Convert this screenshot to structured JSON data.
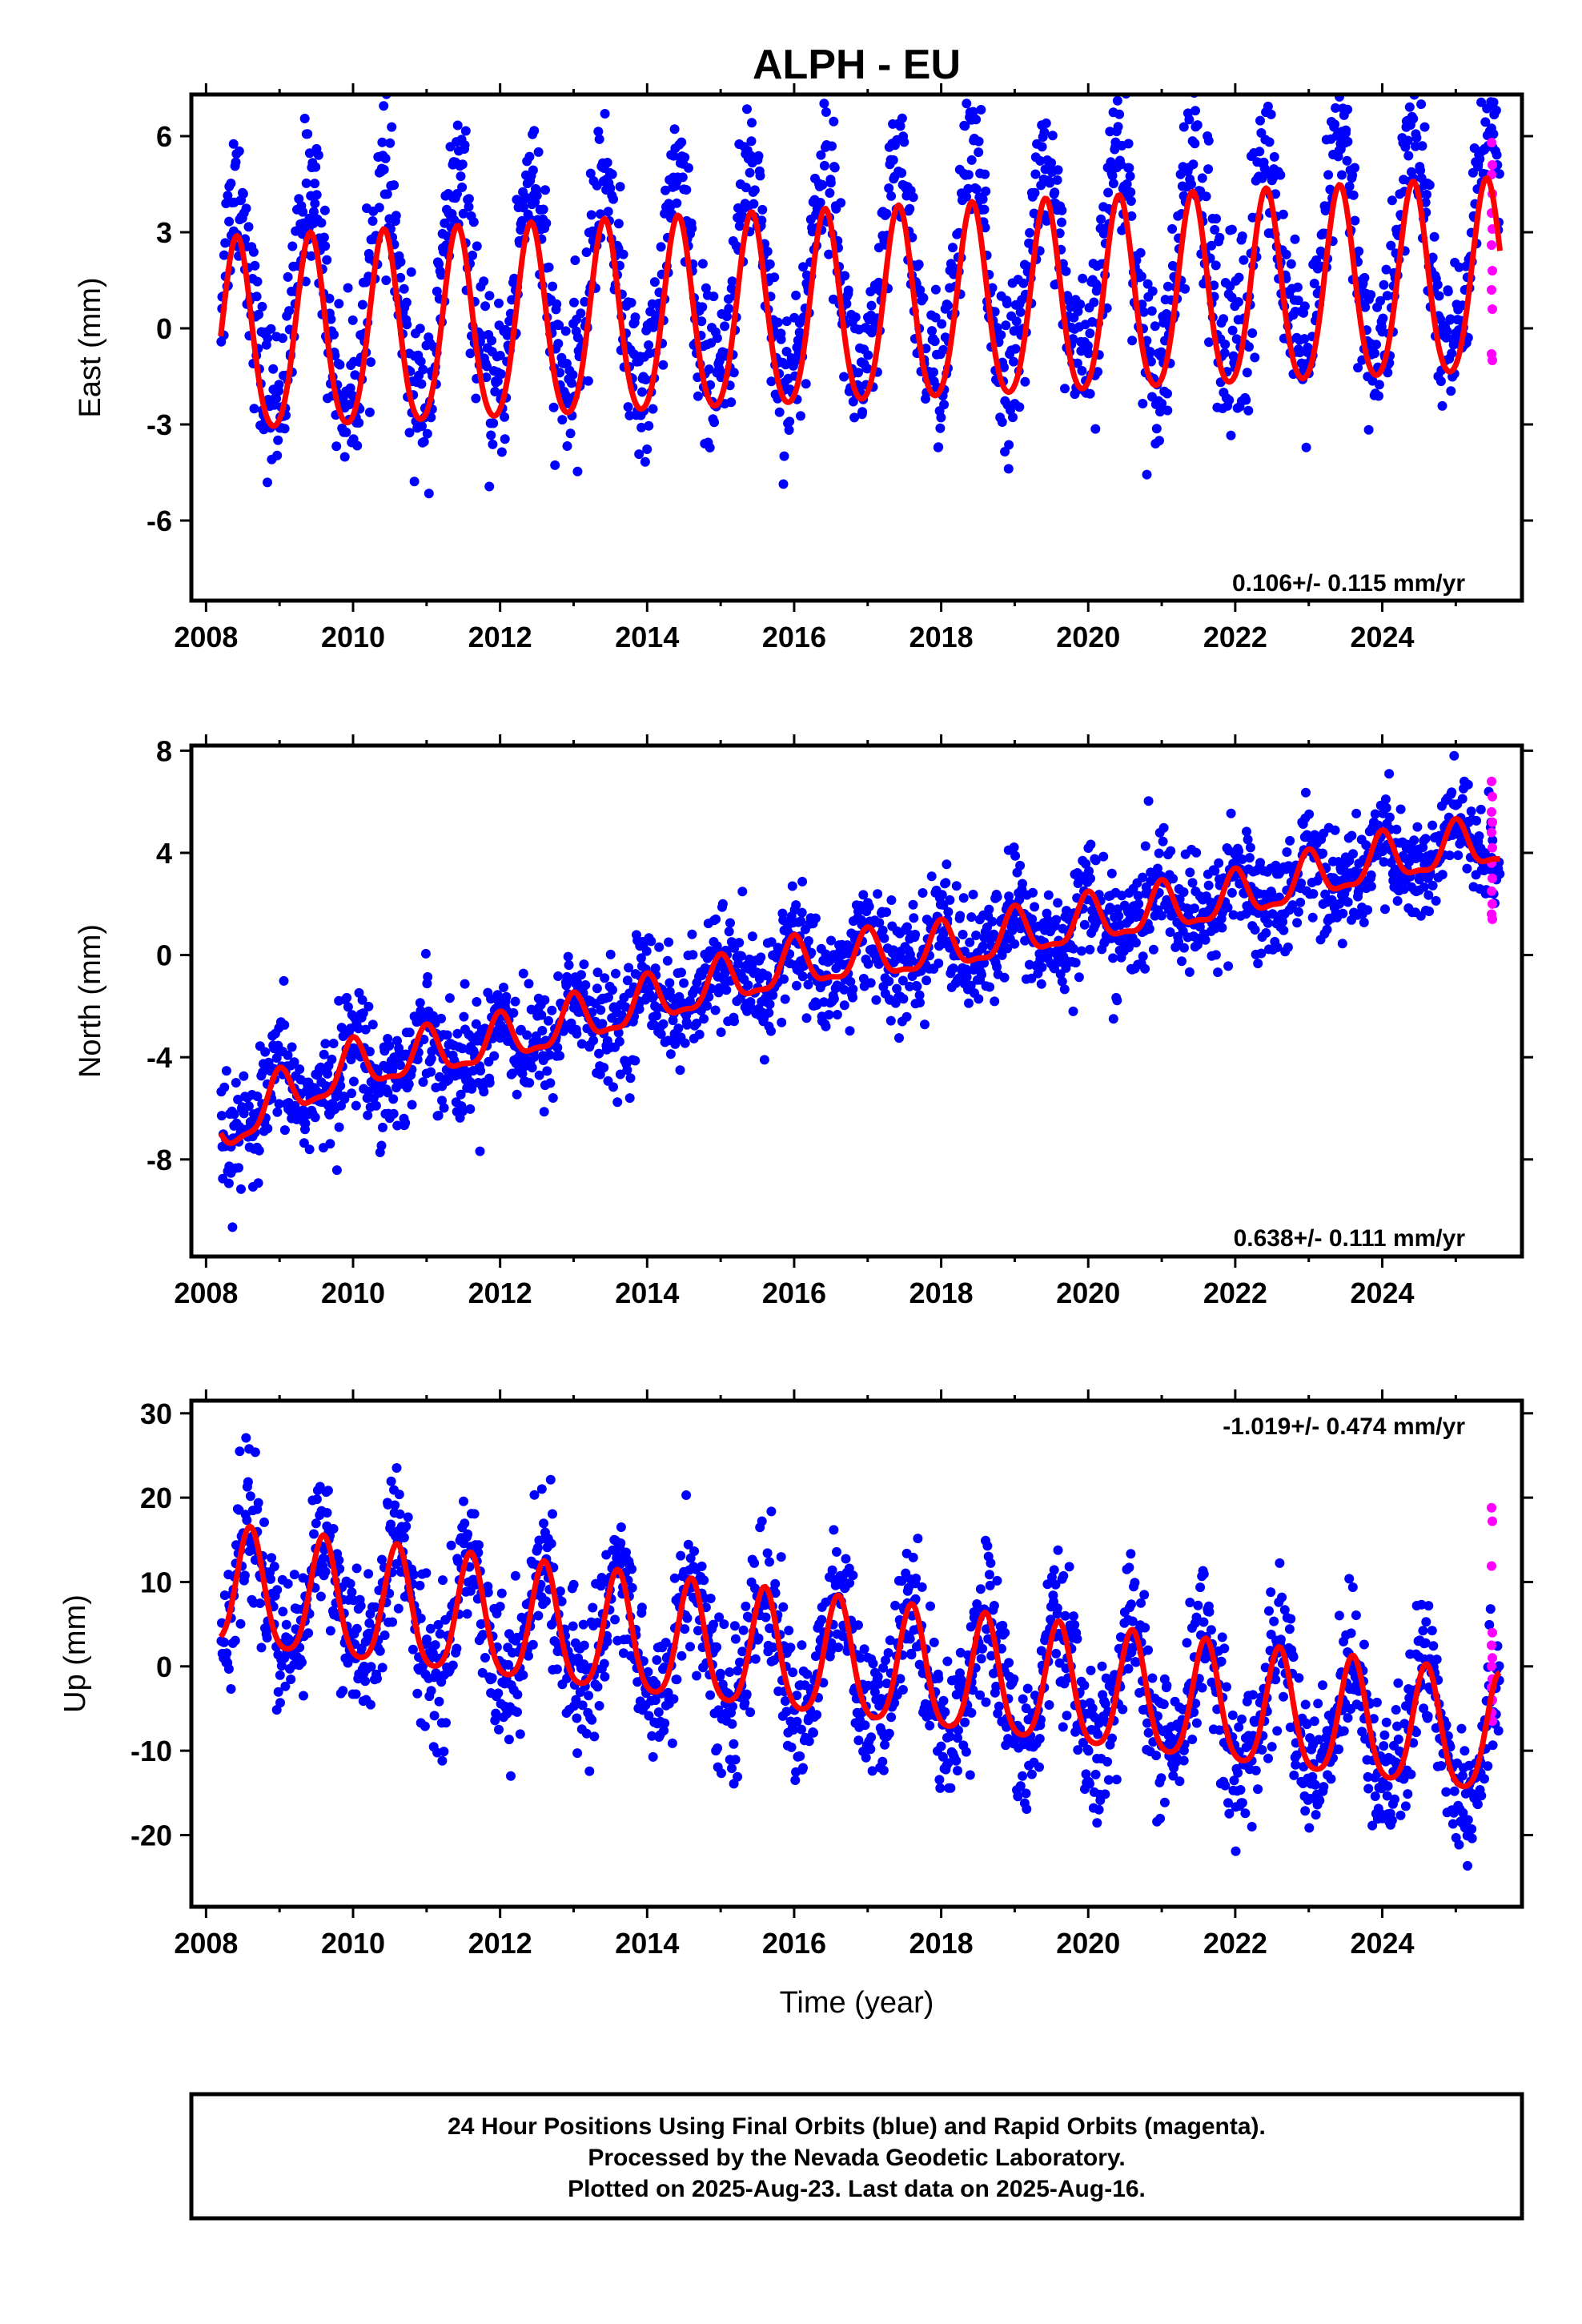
{
  "figure": {
    "title": "ALPH - EU",
    "xlabel": "Time (year)",
    "caption": [
      "24 Hour Positions Using Final Orbits (blue) and Rapid Orbits (magenta).",
      "Processed by the Nevada Geodetic Laboratory.",
      "Plotted on 2025-Aug-23. Last data on 2025-Aug-16."
    ],
    "colors": {
      "final": "#0000ff",
      "rapid": "#ff00ff",
      "model": "#ff0000"
    }
  },
  "chart_data": [
    {
      "type": "scatter",
      "ylabel": "East (mm)",
      "rate_label": "0.106+/- 0.115 mm/yr",
      "xlim": [
        2007.8,
        2025.9
      ],
      "ylim": [
        -8.5,
        7.3
      ],
      "xticks": [
        "2008",
        "2010",
        "2012",
        "2014",
        "2016",
        "2018",
        "2020",
        "2022",
        "2024"
      ],
      "yticks": [
        "6",
        "3",
        "0",
        "-3",
        "-6"
      ],
      "ytick_values": [
        6,
        3,
        0,
        -3,
        -6
      ],
      "x_range": [
        2008.2,
        2025.6
      ],
      "series": [
        {
          "name": "Final Orbits (blue)",
          "kind": "points",
          "offset": 0.5,
          "trend": 0.106,
          "amp1": 3.4,
          "peak": 0.42,
          "amp2": 0.5,
          "noise": 1.2,
          "extra_noise": [
            [
              2021.5,
              2022.3,
              0.8
            ]
          ]
        },
        {
          "name": "Rapid Orbits (magenta)",
          "kind": "points",
          "x_range": [
            2025.5,
            2025.62
          ],
          "values": [
            5.8,
            5.1,
            4.8,
            4.2,
            3.6,
            3.1,
            2.6,
            1.8,
            1.2,
            0.6,
            -0.8,
            -1.0
          ]
        },
        {
          "name": "model",
          "kind": "line",
          "offset": -0.5,
          "trend": 0.106,
          "amp1": 3.0,
          "peak": 0.42,
          "amp2": 0.35
        }
      ]
    },
    {
      "type": "scatter",
      "ylabel": "North (mm)",
      "rate_label": "0.638+/- 0.111 mm/yr",
      "xlim": [
        2007.8,
        2025.9
      ],
      "ylim": [
        -11.8,
        8.2
      ],
      "xticks": [
        "2008",
        "2010",
        "2012",
        "2014",
        "2016",
        "2018",
        "2020",
        "2022",
        "2024"
      ],
      "yticks": [
        "8",
        "4",
        "0",
        "-4",
        "-8"
      ],
      "ytick_values": [
        8,
        4,
        0,
        -4,
        -8
      ],
      "x_range": [
        2008.2,
        2025.6
      ],
      "series": [
        {
          "name": "Final Orbits (blue)",
          "kind": "points",
          "curve": [
            [
              2008.2,
              -7.0
            ],
            [
              2009.0,
              -5.6
            ],
            [
              2010.0,
              -4.4
            ],
            [
              2012.0,
              -3.4
            ],
            [
              2014.0,
              -1.9
            ],
            [
              2016.0,
              -0.4
            ],
            [
              2018.0,
              0.2
            ],
            [
              2020.0,
              1.3
            ],
            [
              2022.0,
              2.2
            ],
            [
              2024.0,
              3.7
            ],
            [
              2025.6,
              4.4
            ]
          ],
          "amp1": 0.9,
          "peak": 0.0,
          "amp2": 0.3,
          "noise": 1.1
        },
        {
          "name": "Rapid Orbits (magenta)",
          "kind": "points",
          "x_range": [
            2025.5,
            2025.62
          ],
          "values": [
            6.8,
            6.2,
            5.6,
            5.2,
            4.8,
            4.2,
            3.6,
            3.0,
            2.5,
            2.0,
            1.6,
            1.4
          ]
        },
        {
          "name": "model",
          "kind": "line",
          "curve": [
            [
              2008.2,
              -7.0
            ],
            [
              2009.0,
              -5.6
            ],
            [
              2010.0,
              -4.4
            ],
            [
              2012.0,
              -3.4
            ],
            [
              2014.0,
              -1.9
            ],
            [
              2016.0,
              -0.4
            ],
            [
              2018.0,
              0.2
            ],
            [
              2020.0,
              1.3
            ],
            [
              2022.0,
              2.2
            ],
            [
              2024.0,
              3.7
            ],
            [
              2025.6,
              4.4
            ]
          ],
          "amp1": 0.9,
          "peak": 0.0,
          "amp2": 0.3
        }
      ]
    },
    {
      "type": "scatter",
      "ylabel": "Up (mm)",
      "rate_label": "-1.019+/- 0.474 mm/yr",
      "xlim": [
        2007.8,
        2025.9
      ],
      "ylim": [
        -28.5,
        31.5
      ],
      "xticks": [
        "2008",
        "2010",
        "2012",
        "2014",
        "2016",
        "2018",
        "2020",
        "2022",
        "2024"
      ],
      "yticks": [
        "30",
        "20",
        "10",
        "0",
        "-10",
        "-20"
      ],
      "ytick_values": [
        30,
        20,
        10,
        0,
        -10,
        -20
      ],
      "x_range": [
        2008.2,
        2025.6
      ],
      "series": [
        {
          "name": "Final Orbits (blue)",
          "kind": "points",
          "offset": 9.0,
          "trend": -1.019,
          "amp1": 7.5,
          "peak": 0.6,
          "amp2": 1.2,
          "noise": 4.2
        },
        {
          "name": "Rapid Orbits (magenta)",
          "kind": "points",
          "x_range": [
            2025.5,
            2025.62
          ],
          "values": [
            18.8,
            17.2,
            11.9,
            4.0,
            2.5,
            1.0,
            0.0,
            -1.5,
            -2.5,
            -4.0,
            -5.5,
            -6.5
          ]
        },
        {
          "name": "model",
          "kind": "line",
          "offset": 9.0,
          "trend": -1.019,
          "amp1": 7.0,
          "peak": 0.6,
          "amp2": 1.2
        }
      ]
    }
  ]
}
